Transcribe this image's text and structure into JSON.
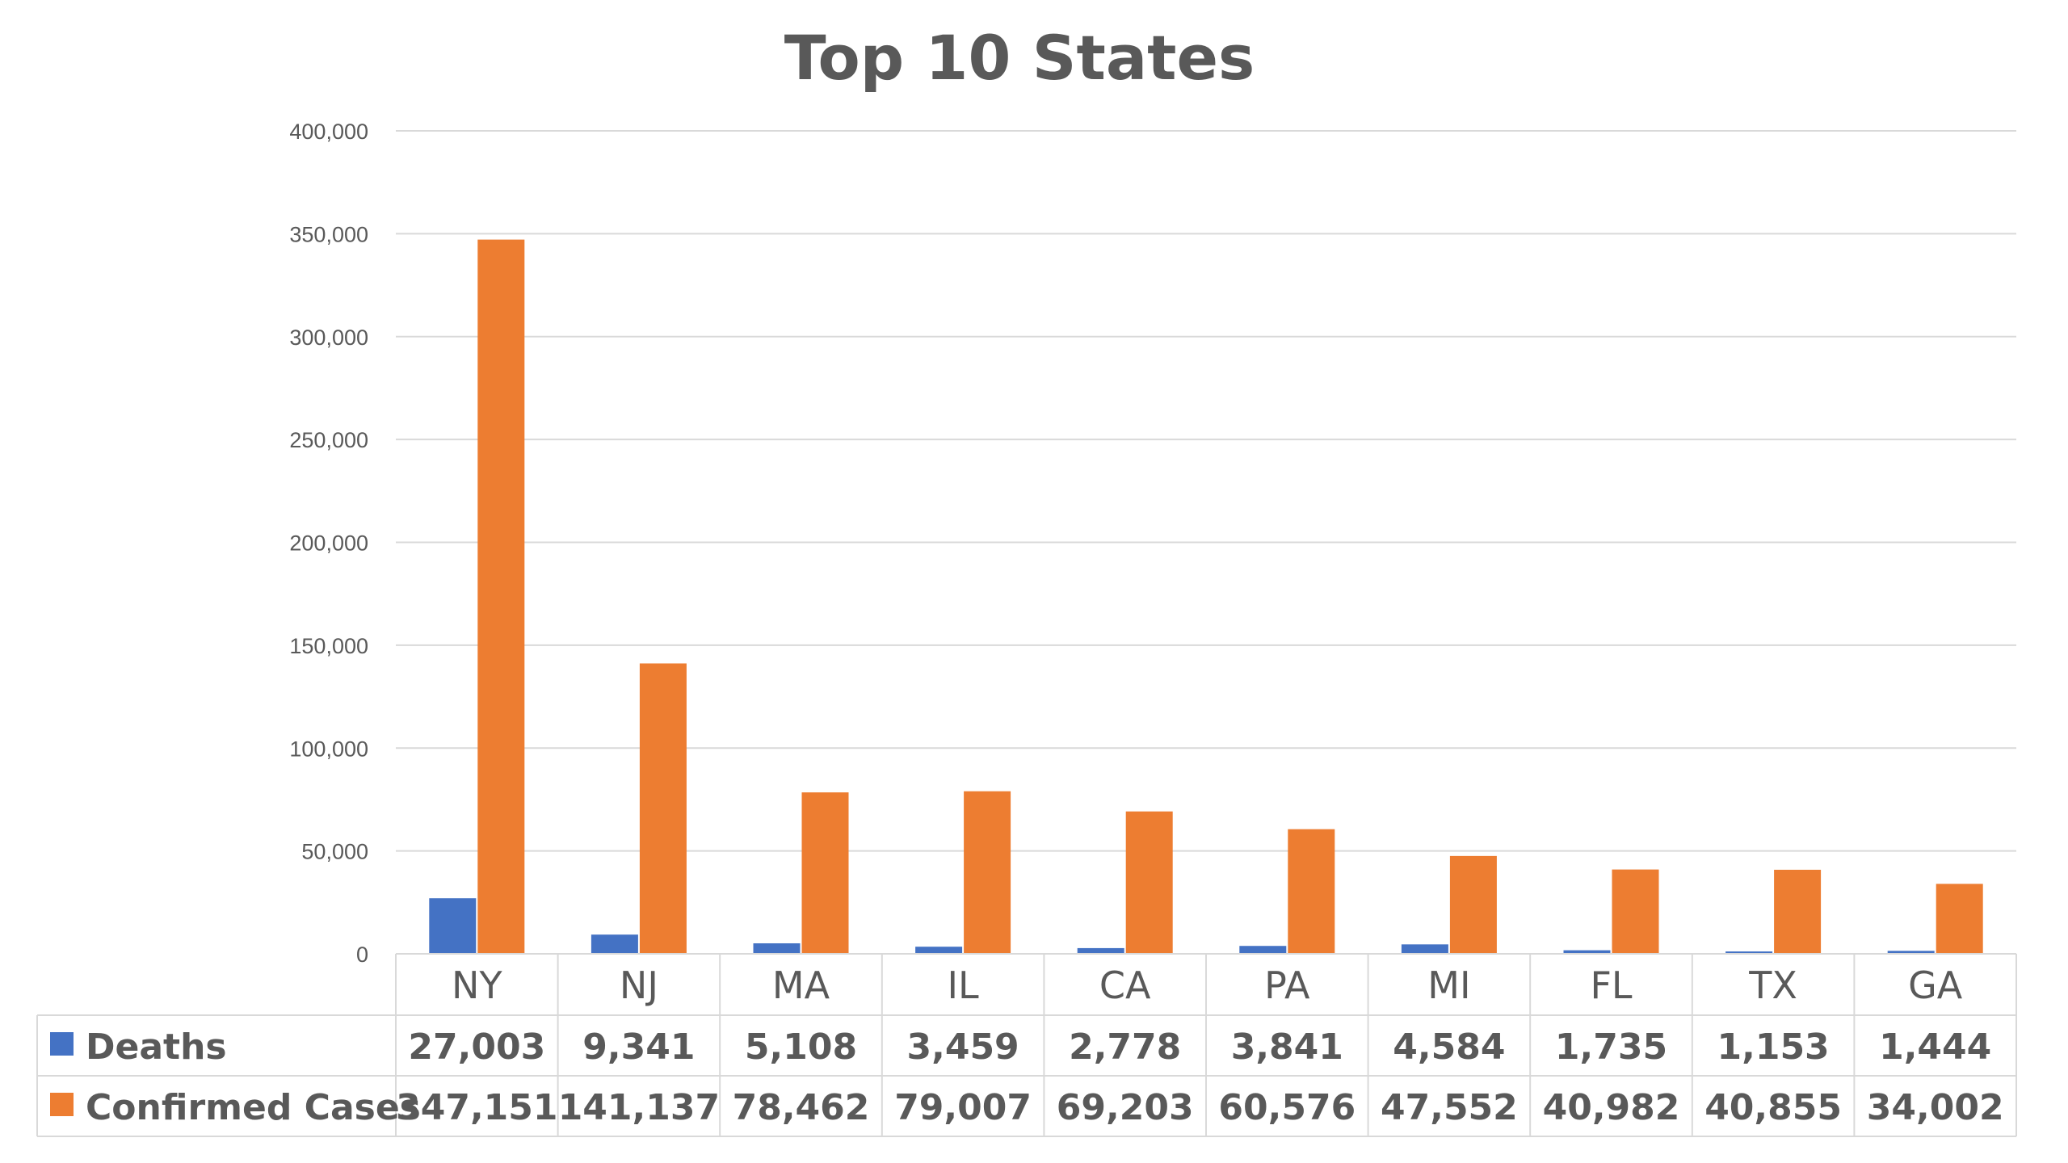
{
  "chart_data": {
    "type": "bar",
    "title": "Top 10 States",
    "categories": [
      "NY",
      "NJ",
      "MA",
      "IL",
      "CA",
      "PA",
      "MI",
      "FL",
      "TX",
      "GA"
    ],
    "series": [
      {
        "name": "Deaths",
        "color": "#4472C4",
        "values": [
          27003,
          9341,
          5108,
          3459,
          2778,
          3841,
          4584,
          1735,
          1153,
          1444
        ],
        "labels": [
          "27,003",
          "9,341",
          "5,108",
          "3,459",
          "2,778",
          "3,841",
          "4,584",
          "1,735",
          "1,153",
          "1,444"
        ]
      },
      {
        "name": "Confirmed Cases",
        "color": "#ED7D31",
        "values": [
          347151,
          141137,
          78462,
          79007,
          69203,
          60576,
          47552,
          40982,
          40855,
          34002
        ],
        "labels": [
          "347,151",
          "141,137",
          "78,462",
          "79,007",
          "69,203",
          "60,576",
          "47,552",
          "40,982",
          "40,855",
          "34,002"
        ]
      }
    ],
    "ylim": [
      0,
      400000
    ],
    "yticks": [
      0,
      50000,
      100000,
      150000,
      200000,
      250000,
      300000,
      350000,
      400000
    ],
    "ytick_labels": [
      "0",
      "50,000",
      "100,000",
      "150,000",
      "200,000",
      "250,000",
      "300,000",
      "350,000",
      "400,000"
    ],
    "grid": true,
    "legend": "data-table",
    "data_table": true
  }
}
